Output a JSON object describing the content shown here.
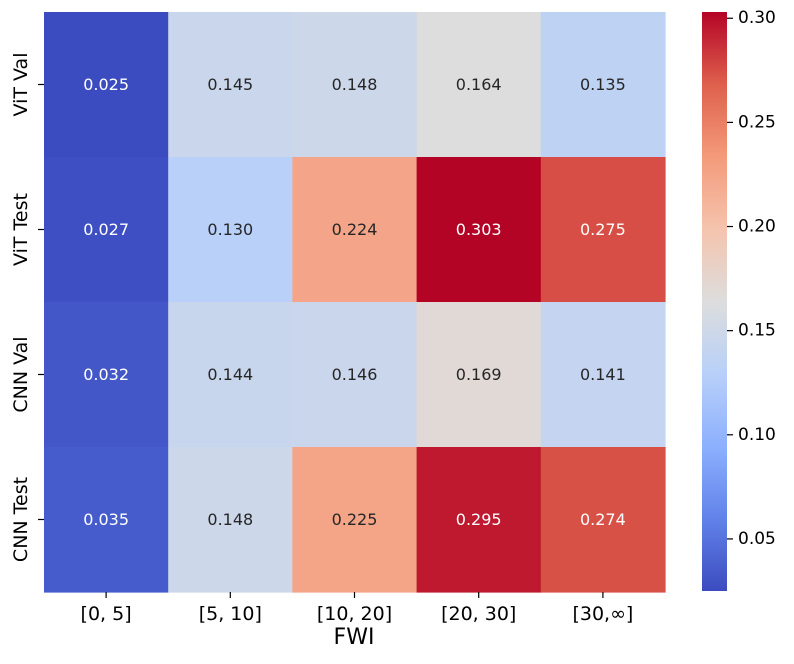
{
  "chart_data": {
    "type": "heatmap",
    "title": "",
    "xlabel": "FWI",
    "ylabel": "",
    "x_categories": [
      "[0, 5]",
      "[5, 10]",
      "[10, 20]",
      "[20, 30]",
      "[30,∞]"
    ],
    "y_categories": [
      "ViT Val",
      "ViT Test",
      "CNN Val",
      "CNN Test"
    ],
    "values": [
      [
        0.025,
        0.145,
        0.148,
        0.164,
        0.135
      ],
      [
        0.027,
        0.13,
        0.224,
        0.303,
        0.275
      ],
      [
        0.032,
        0.144,
        0.146,
        0.169,
        0.141
      ],
      [
        0.035,
        0.148,
        0.225,
        0.295,
        0.274
      ]
    ],
    "value_labels": [
      [
        "0.025",
        "0.145",
        "0.148",
        "0.164",
        "0.135"
      ],
      [
        "0.027",
        "0.130",
        "0.224",
        "0.303",
        "0.275"
      ],
      [
        "0.032",
        "0.144",
        "0.146",
        "0.169",
        "0.141"
      ],
      [
        "0.035",
        "0.148",
        "0.225",
        "0.295",
        "0.274"
      ]
    ],
    "colormap": "coolwarm",
    "vmin": 0.025,
    "vmax": 0.303,
    "colorbar_ticks": [
      0.05,
      0.1,
      0.15,
      0.2,
      0.25,
      0.3
    ],
    "colorbar_tick_labels": [
      "0.05",
      "0.10",
      "0.15",
      "0.20",
      "0.25",
      "0.30"
    ]
  }
}
